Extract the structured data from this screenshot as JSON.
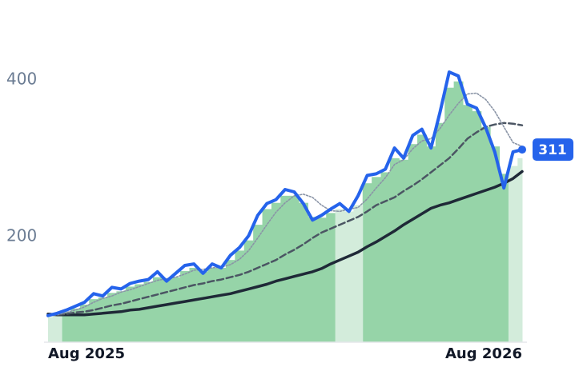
{
  "chart_data": {
    "type": "line",
    "categories": [
      "Aug 2025",
      null,
      null,
      null,
      null,
      null,
      null,
      null,
      null,
      null,
      null,
      null,
      null,
      null,
      null,
      null,
      null,
      null,
      null,
      null,
      null,
      null,
      null,
      null,
      null,
      null,
      null,
      null,
      null,
      null,
      null,
      null,
      null,
      null,
      null,
      null,
      null,
      null,
      null,
      null,
      null,
      null,
      null,
      null,
      null,
      null,
      null,
      null,
      null,
      null,
      null,
      null,
      "Aug 2026"
    ],
    "ylim": [
      65,
      502
    ],
    "yticks": [
      200,
      400
    ],
    "series": [
      {
        "kind": "bar",
        "color": "#96d4a8",
        "values": [
          null,
          null,
          104,
          108,
          113,
          120,
          122,
          128,
          130,
          136,
          139,
          142,
          148,
          145,
          148,
          156,
          160,
          155,
          160,
          160,
          170,
          182,
          195,
          215,
          235,
          243,
          252,
          252,
          243,
          225,
          224,
          230,
          null,
          null,
          null,
          268,
          276,
          282,
          300,
          298,
          318,
          330,
          315,
          345,
          390,
          398,
          368,
          360,
          340,
          315,
          280,
          null,
          null
        ]
      },
      {
        "kind": "bar",
        "color": "#d3ecdb",
        "values": [
          97,
          100,
          null,
          null,
          null,
          null,
          null,
          null,
          null,
          null,
          null,
          null,
          null,
          null,
          null,
          null,
          null,
          null,
          null,
          null,
          null,
          null,
          null,
          null,
          null,
          null,
          null,
          null,
          null,
          null,
          null,
          null,
          235,
          232,
          240,
          null,
          null,
          null,
          null,
          null,
          null,
          null,
          null,
          null,
          null,
          null,
          null,
          null,
          null,
          null,
          null,
          290,
          300
        ]
      },
      {
        "kind": "line",
        "style": "solid",
        "color": "#1f2937",
        "values": [
          101,
          100,
          100,
          100,
          100,
          101,
          102,
          103,
          104,
          106,
          107,
          109,
          111,
          113,
          115,
          117,
          119,
          121,
          123,
          125,
          127,
          130,
          133,
          136,
          139,
          143,
          146,
          149,
          152,
          155,
          159,
          165,
          170,
          175,
          180,
          187,
          193,
          200,
          207,
          215,
          222,
          229,
          236,
          240,
          243,
          247,
          251,
          255,
          259,
          263,
          268,
          274,
          283
        ]
      },
      {
        "kind": "line",
        "style": "dashed",
        "color": "#4b5563",
        "values": [
          100,
          100,
          101,
          103,
          104,
          106,
          109,
          112,
          114,
          117,
          120,
          123,
          126,
          129,
          132,
          135,
          138,
          140,
          143,
          145,
          148,
          151,
          155,
          160,
          165,
          170,
          177,
          183,
          190,
          198,
          205,
          210,
          215,
          220,
          225,
          232,
          240,
          245,
          250,
          258,
          265,
          273,
          282,
          291,
          300,
          312,
          325,
          333,
          340,
          343,
          345,
          344,
          342
        ]
      },
      {
        "kind": "line",
        "style": "dotted",
        "color": "#8a94a6",
        "values": [
          99,
          100,
          103,
          106,
          110,
          116,
          121,
          124,
          129,
          132,
          136,
          140,
          144,
          146,
          148,
          152,
          157,
          158,
          160,
          161,
          164,
          171,
          182,
          198,
          215,
          231,
          243,
          252,
          254,
          250,
          240,
          233,
          232,
          235,
          237,
          248,
          262,
          275,
          292,
          298,
          312,
          322,
          325,
          338,
          355,
          370,
          382,
          383,
          375,
          360,
          340,
          320,
          315
        ]
      },
      {
        "kind": "line",
        "style": "price",
        "color": "#2563eb",
        "values": [
          99,
          102,
          106,
          111,
          116,
          127,
          124,
          135,
          133,
          140,
          143,
          145,
          155,
          143,
          153,
          163,
          165,
          153,
          165,
          160,
          176,
          186,
          201,
          227,
          242,
          247,
          260,
          257,
          242,
          221,
          227,
          235,
          242,
          232,
          252,
          278,
          280,
          286,
          313,
          300,
          329,
          337,
          313,
          359,
          410,
          405,
          369,
          364,
          339,
          308,
          262,
          308,
          311
        ]
      }
    ]
  }
}
